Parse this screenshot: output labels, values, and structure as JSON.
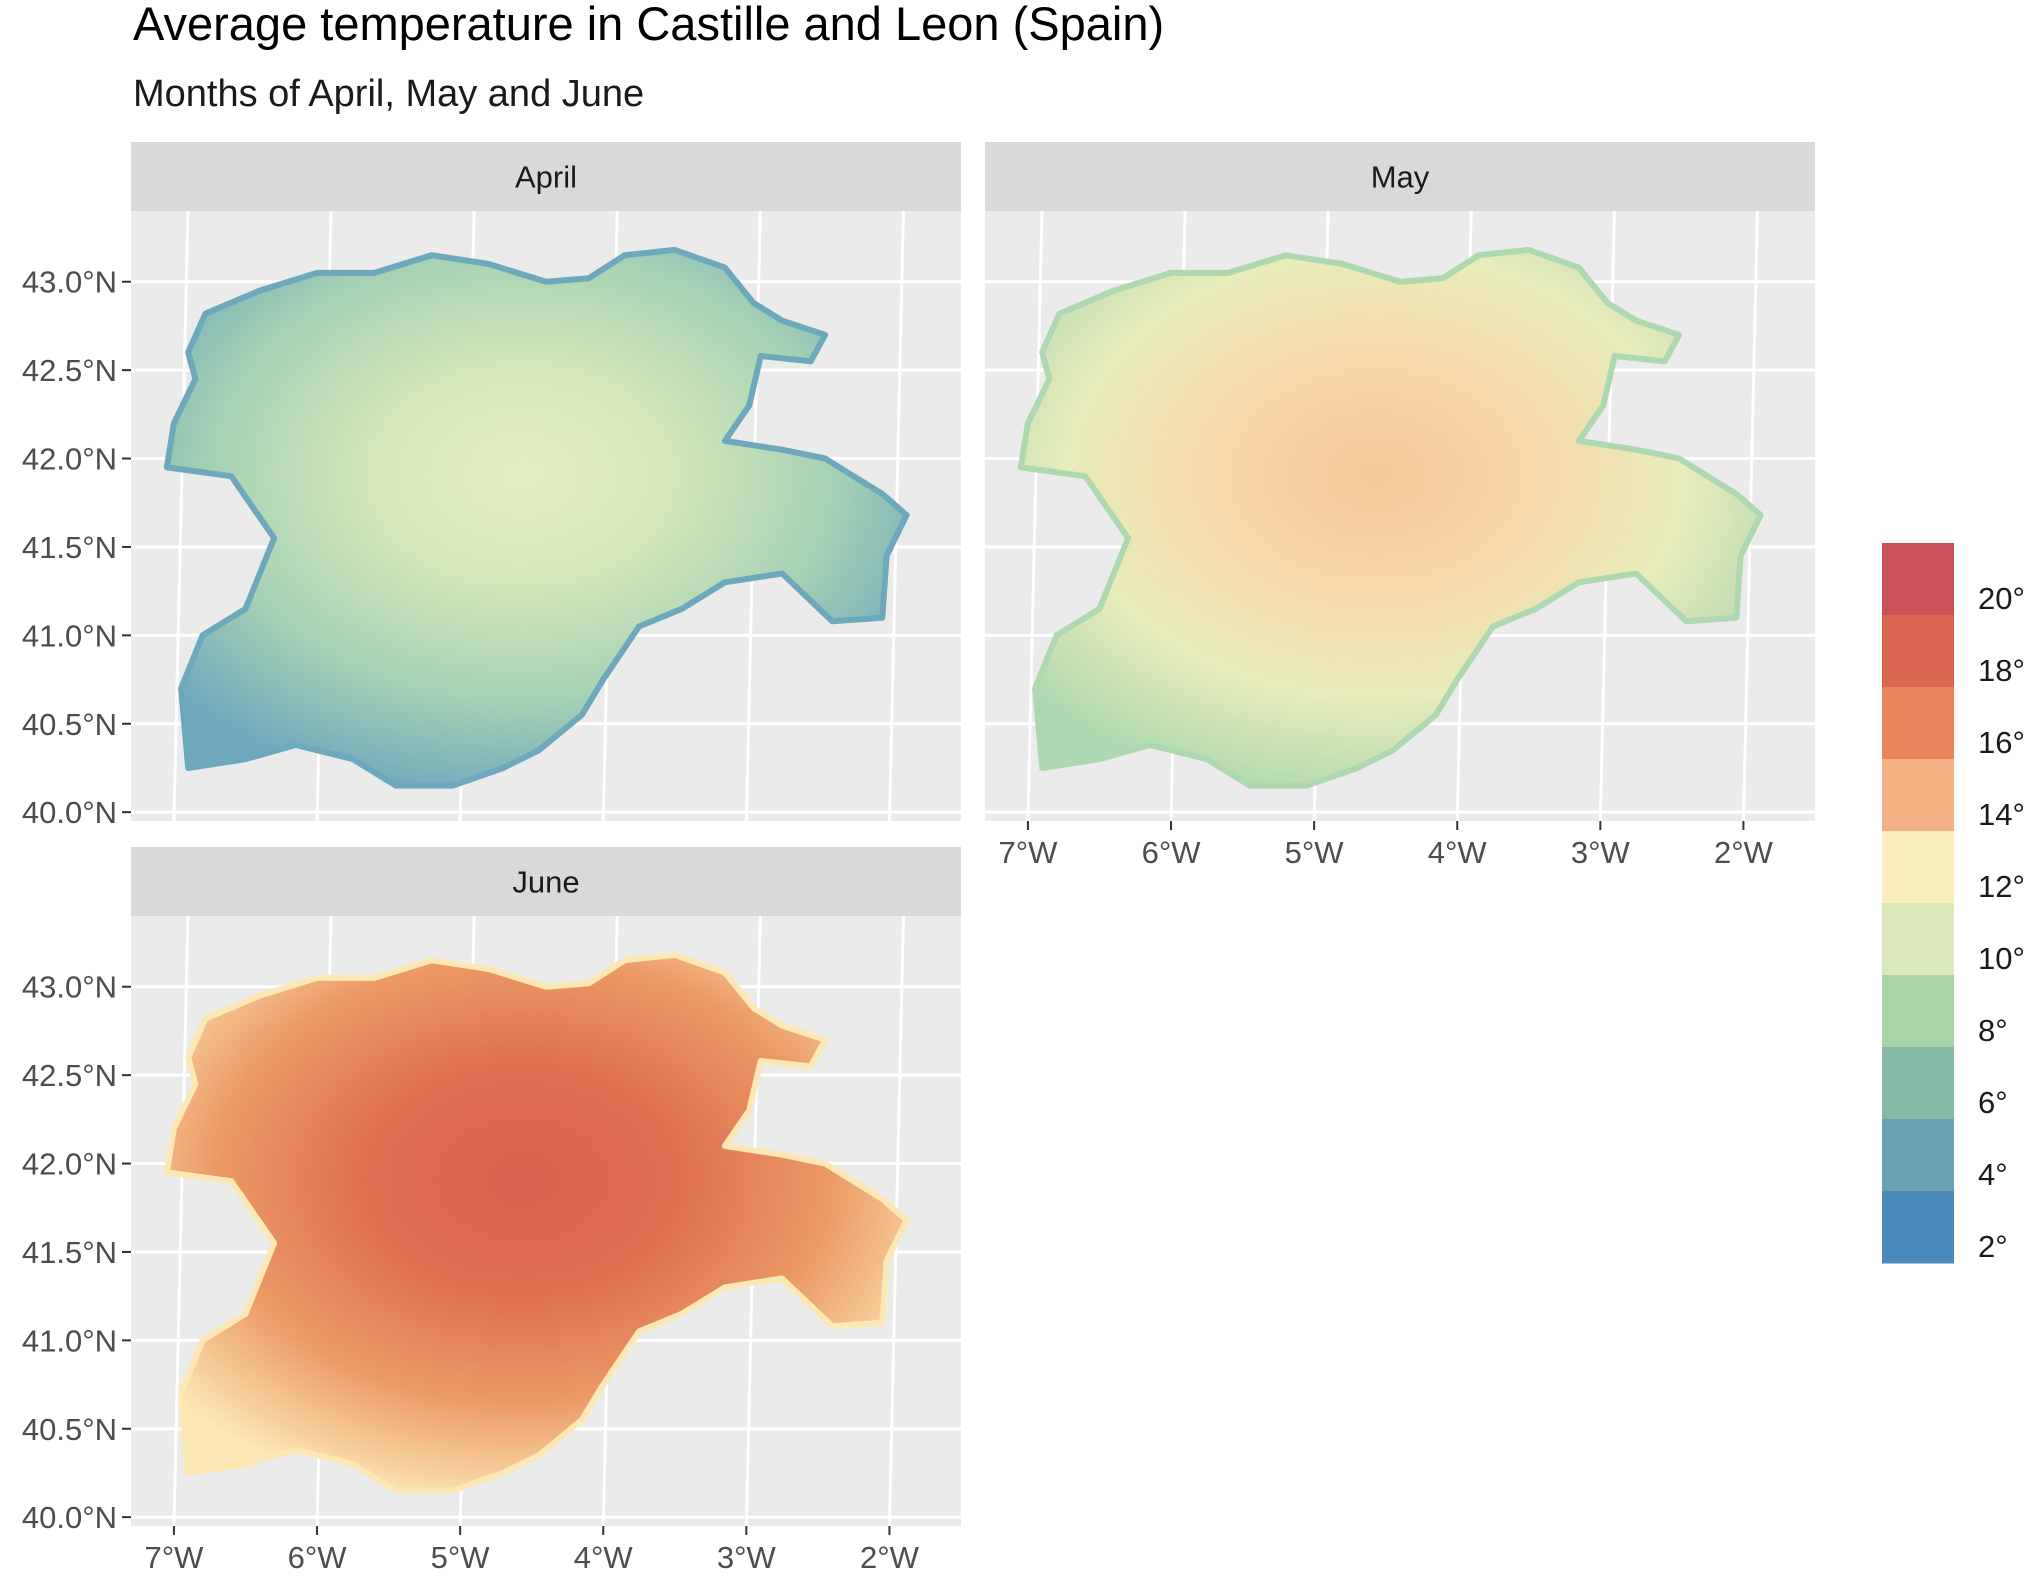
{
  "chart_data": {
    "type": "heatmap",
    "title": "Average temperature in Castille and Leon (Spain)",
    "subtitle": "Months of April, May and June",
    "x_ticks": [
      "7°W",
      "6°W",
      "5°W",
      "4°W",
      "3°W",
      "2°W"
    ],
    "x_tick_values": [
      -7,
      -6,
      -5,
      -4,
      -3,
      -2
    ],
    "y_ticks": [
      "40.0°N",
      "40.5°N",
      "41.0°N",
      "41.5°N",
      "42.0°N",
      "42.5°N",
      "43.0°N"
    ],
    "y_tick_values": [
      40.0,
      40.5,
      41.0,
      41.5,
      42.0,
      42.5,
      43.0
    ],
    "xlim": [
      -7.3,
      -1.5
    ],
    "ylim": [
      39.95,
      43.4
    ],
    "legend": {
      "position": "right",
      "labels": [
        "20°",
        "18°",
        "16°",
        "14°",
        "12°",
        "10°",
        "8°",
        "6°",
        "4°",
        "2°"
      ],
      "values": [
        20,
        18,
        16,
        14,
        12,
        10,
        8,
        6,
        4,
        2
      ],
      "colors": [
        "#c9515a",
        "#d9674f",
        "#e8845a",
        "#f4b183",
        "#fdefbb",
        "#dbe8b9",
        "#a9d4a5",
        "#85bba6",
        "#6aa2b4",
        "#4b88bb"
      ]
    },
    "region_outline": [
      [
        -6.9,
        42.6
      ],
      [
        -6.78,
        42.82
      ],
      [
        -6.4,
        42.95
      ],
      [
        -6.0,
        43.05
      ],
      [
        -5.6,
        43.05
      ],
      [
        -5.2,
        43.15
      ],
      [
        -4.8,
        43.1
      ],
      [
        -4.4,
        43.0
      ],
      [
        -4.1,
        43.02
      ],
      [
        -3.85,
        43.15
      ],
      [
        -3.5,
        43.18
      ],
      [
        -3.15,
        43.08
      ],
      [
        -2.95,
        42.88
      ],
      [
        -2.75,
        42.78
      ],
      [
        -2.45,
        42.7
      ],
      [
        -2.55,
        42.55
      ],
      [
        -2.9,
        42.58
      ],
      [
        -2.98,
        42.3
      ],
      [
        -3.15,
        42.1
      ],
      [
        -2.75,
        42.05
      ],
      [
        -2.45,
        42.0
      ],
      [
        -2.05,
        41.8
      ],
      [
        -1.88,
        41.68
      ],
      [
        -2.02,
        41.45
      ],
      [
        -2.05,
        41.1
      ],
      [
        -2.4,
        41.08
      ],
      [
        -2.75,
        41.35
      ],
      [
        -3.15,
        41.3
      ],
      [
        -3.45,
        41.15
      ],
      [
        -3.75,
        41.05
      ],
      [
        -4.0,
        40.75
      ],
      [
        -4.15,
        40.55
      ],
      [
        -4.45,
        40.35
      ],
      [
        -4.7,
        40.25
      ],
      [
        -5.05,
        40.15
      ],
      [
        -5.45,
        40.15
      ],
      [
        -5.75,
        40.3
      ],
      [
        -6.15,
        40.38
      ],
      [
        -6.5,
        40.3
      ],
      [
        -6.9,
        40.25
      ],
      [
        -6.95,
        40.7
      ],
      [
        -6.8,
        41.0
      ],
      [
        -6.5,
        41.15
      ],
      [
        -6.3,
        41.55
      ],
      [
        -6.6,
        41.9
      ],
      [
        -7.05,
        41.95
      ],
      [
        -7.0,
        42.2
      ],
      [
        -6.85,
        42.45
      ]
    ],
    "facets": [
      {
        "name": "April",
        "fill_stops": [
          "#e4eec2",
          "#d3e7ba",
          "#a7d2b4",
          "#6ea8bc"
        ]
      },
      {
        "name": "May",
        "fill_stops": [
          "#f6c897",
          "#f8d7a8",
          "#e8ecbb",
          "#aed8b0"
        ]
      },
      {
        "name": "June",
        "fill_stops": [
          "#d9634e",
          "#dd6e50",
          "#ec9a66",
          "#fbe8b4"
        ]
      }
    ]
  }
}
